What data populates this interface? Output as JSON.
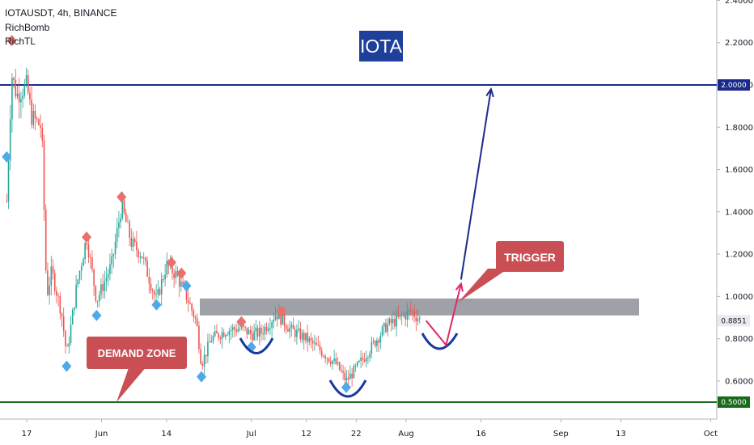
{
  "header": {
    "symbol_line": "IOTAUSDT, 4h, BINANCE",
    "indicator_1": "RichBomb",
    "indicator_2": "RichTL"
  },
  "title_box": {
    "label": "IOTA",
    "color": "#1e3f9a"
  },
  "callouts": {
    "trigger": {
      "label": "TRIGGER",
      "color": "#c94f55"
    },
    "demand_zone": {
      "label": "DEMAND ZONE",
      "color": "#c94f55"
    }
  },
  "price_tags": {
    "resistance": {
      "label": "2.0000",
      "color": "#1a2a8a"
    },
    "current": {
      "label": "0.8851"
    },
    "support": {
      "label": "0.5000",
      "color": "#1b6a1b"
    }
  },
  "chart_data": {
    "type": "candlestick",
    "title": "",
    "xlabel": "",
    "ylabel": "",
    "y_ticks": [
      "2.4000",
      "2.2000",
      "2.0000",
      "1.8000",
      "1.6000",
      "1.4000",
      "1.2000",
      "1.0000",
      "0.8000",
      "0.6000"
    ],
    "ylim": [
      0.44,
      2.4
    ],
    "x_ticks": [
      "17",
      "Jun",
      "14",
      "Jul",
      "12",
      "22",
      "Aug",
      "16",
      "Sep",
      "13",
      "Oct"
    ],
    "price_path": [
      {
        "x": "May 13",
        "close": 1.45
      },
      {
        "x": "May 14",
        "close": 2.05
      },
      {
        "x": "May 15",
        "close": 1.95
      },
      {
        "x": "May 17",
        "close": 2.0
      },
      {
        "x": "May 18",
        "close": 1.85
      },
      {
        "x": "May 20",
        "close": 1.8
      },
      {
        "x": "May 21",
        "close": 1.0
      },
      {
        "x": "May 22",
        "close": 1.12
      },
      {
        "x": "May 24",
        "close": 0.92
      },
      {
        "x": "May 25",
        "close": 0.72
      },
      {
        "x": "May 27",
        "close": 1.05
      },
      {
        "x": "May 29",
        "close": 1.28
      },
      {
        "x": "May 31",
        "close": 0.98
      },
      {
        "x": "Jun 3",
        "close": 1.15
      },
      {
        "x": "Jun 5",
        "close": 1.43
      },
      {
        "x": "Jun 7",
        "close": 1.25
      },
      {
        "x": "Jun 9",
        "close": 1.2
      },
      {
        "x": "Jun 11",
        "close": 1.05
      },
      {
        "x": "Jun 12",
        "close": 0.98
      },
      {
        "x": "Jun 14",
        "close": 1.15
      },
      {
        "x": "Jun 16",
        "close": 1.1
      },
      {
        "x": "Jun 18",
        "close": 1.0
      },
      {
        "x": "Jun 20",
        "close": 0.88
      },
      {
        "x": "Jun 21",
        "close": 0.68
      },
      {
        "x": "Jun 23",
        "close": 0.8
      },
      {
        "x": "Jun 26",
        "close": 0.84
      },
      {
        "x": "Jun 29",
        "close": 0.85
      },
      {
        "x": "Jul 1",
        "close": 0.82
      },
      {
        "x": "Jul 3",
        "close": 0.83
      },
      {
        "x": "Jul 6",
        "close": 0.92
      },
      {
        "x": "Jul 9",
        "close": 0.84
      },
      {
        "x": "Jul 12",
        "close": 0.8
      },
      {
        "x": "Jul 15",
        "close": 0.74
      },
      {
        "x": "Jul 18",
        "close": 0.68
      },
      {
        "x": "Jul 20",
        "close": 0.6
      },
      {
        "x": "Jul 22",
        "close": 0.66
      },
      {
        "x": "Jul 25",
        "close": 0.76
      },
      {
        "x": "Jul 28",
        "close": 0.86
      },
      {
        "x": "Jul 31",
        "close": 0.9
      },
      {
        "x": "Aug 2",
        "close": 0.93
      },
      {
        "x": "Aug 4",
        "close": 0.885
      }
    ],
    "supply_zone": [
      0.91,
      0.99
    ],
    "levels": [
      {
        "price": 2.0,
        "label": "2.0000"
      },
      {
        "price": 0.5,
        "label": "0.5000"
      }
    ],
    "markers": {
      "sell": [
        {
          "x": "May 14",
          "y": 2.21
        },
        {
          "x": "May 29",
          "y": 1.28
        },
        {
          "x": "Jun 5",
          "y": 1.47
        },
        {
          "x": "Jun 15",
          "y": 1.16
        },
        {
          "x": "Jun 17",
          "y": 1.11
        },
        {
          "x": "Jun 29",
          "y": 0.88
        },
        {
          "x": "Jul 7",
          "y": 0.93
        }
      ],
      "buy": [
        {
          "x": "May 13",
          "y": 1.66
        },
        {
          "x": "May 25",
          "y": 0.67
        },
        {
          "x": "May 31",
          "y": 0.91
        },
        {
          "x": "Jun 12",
          "y": 0.96
        },
        {
          "x": "Jun 18",
          "y": 1.05
        },
        {
          "x": "Jun 21",
          "y": 0.62
        },
        {
          "x": "Jul 1",
          "y": 0.76
        },
        {
          "x": "Jul 20",
          "y": 0.57
        }
      ]
    },
    "projection": [
      {
        "x": "Aug 5",
        "y": 0.885
      },
      {
        "x": "Aug 9",
        "y": 0.77
      },
      {
        "x": "Aug 12",
        "y": 1.06
      },
      {
        "x": "Aug 12",
        "y": 1.08
      },
      {
        "x": "Aug 18",
        "y": 1.98
      }
    ]
  }
}
